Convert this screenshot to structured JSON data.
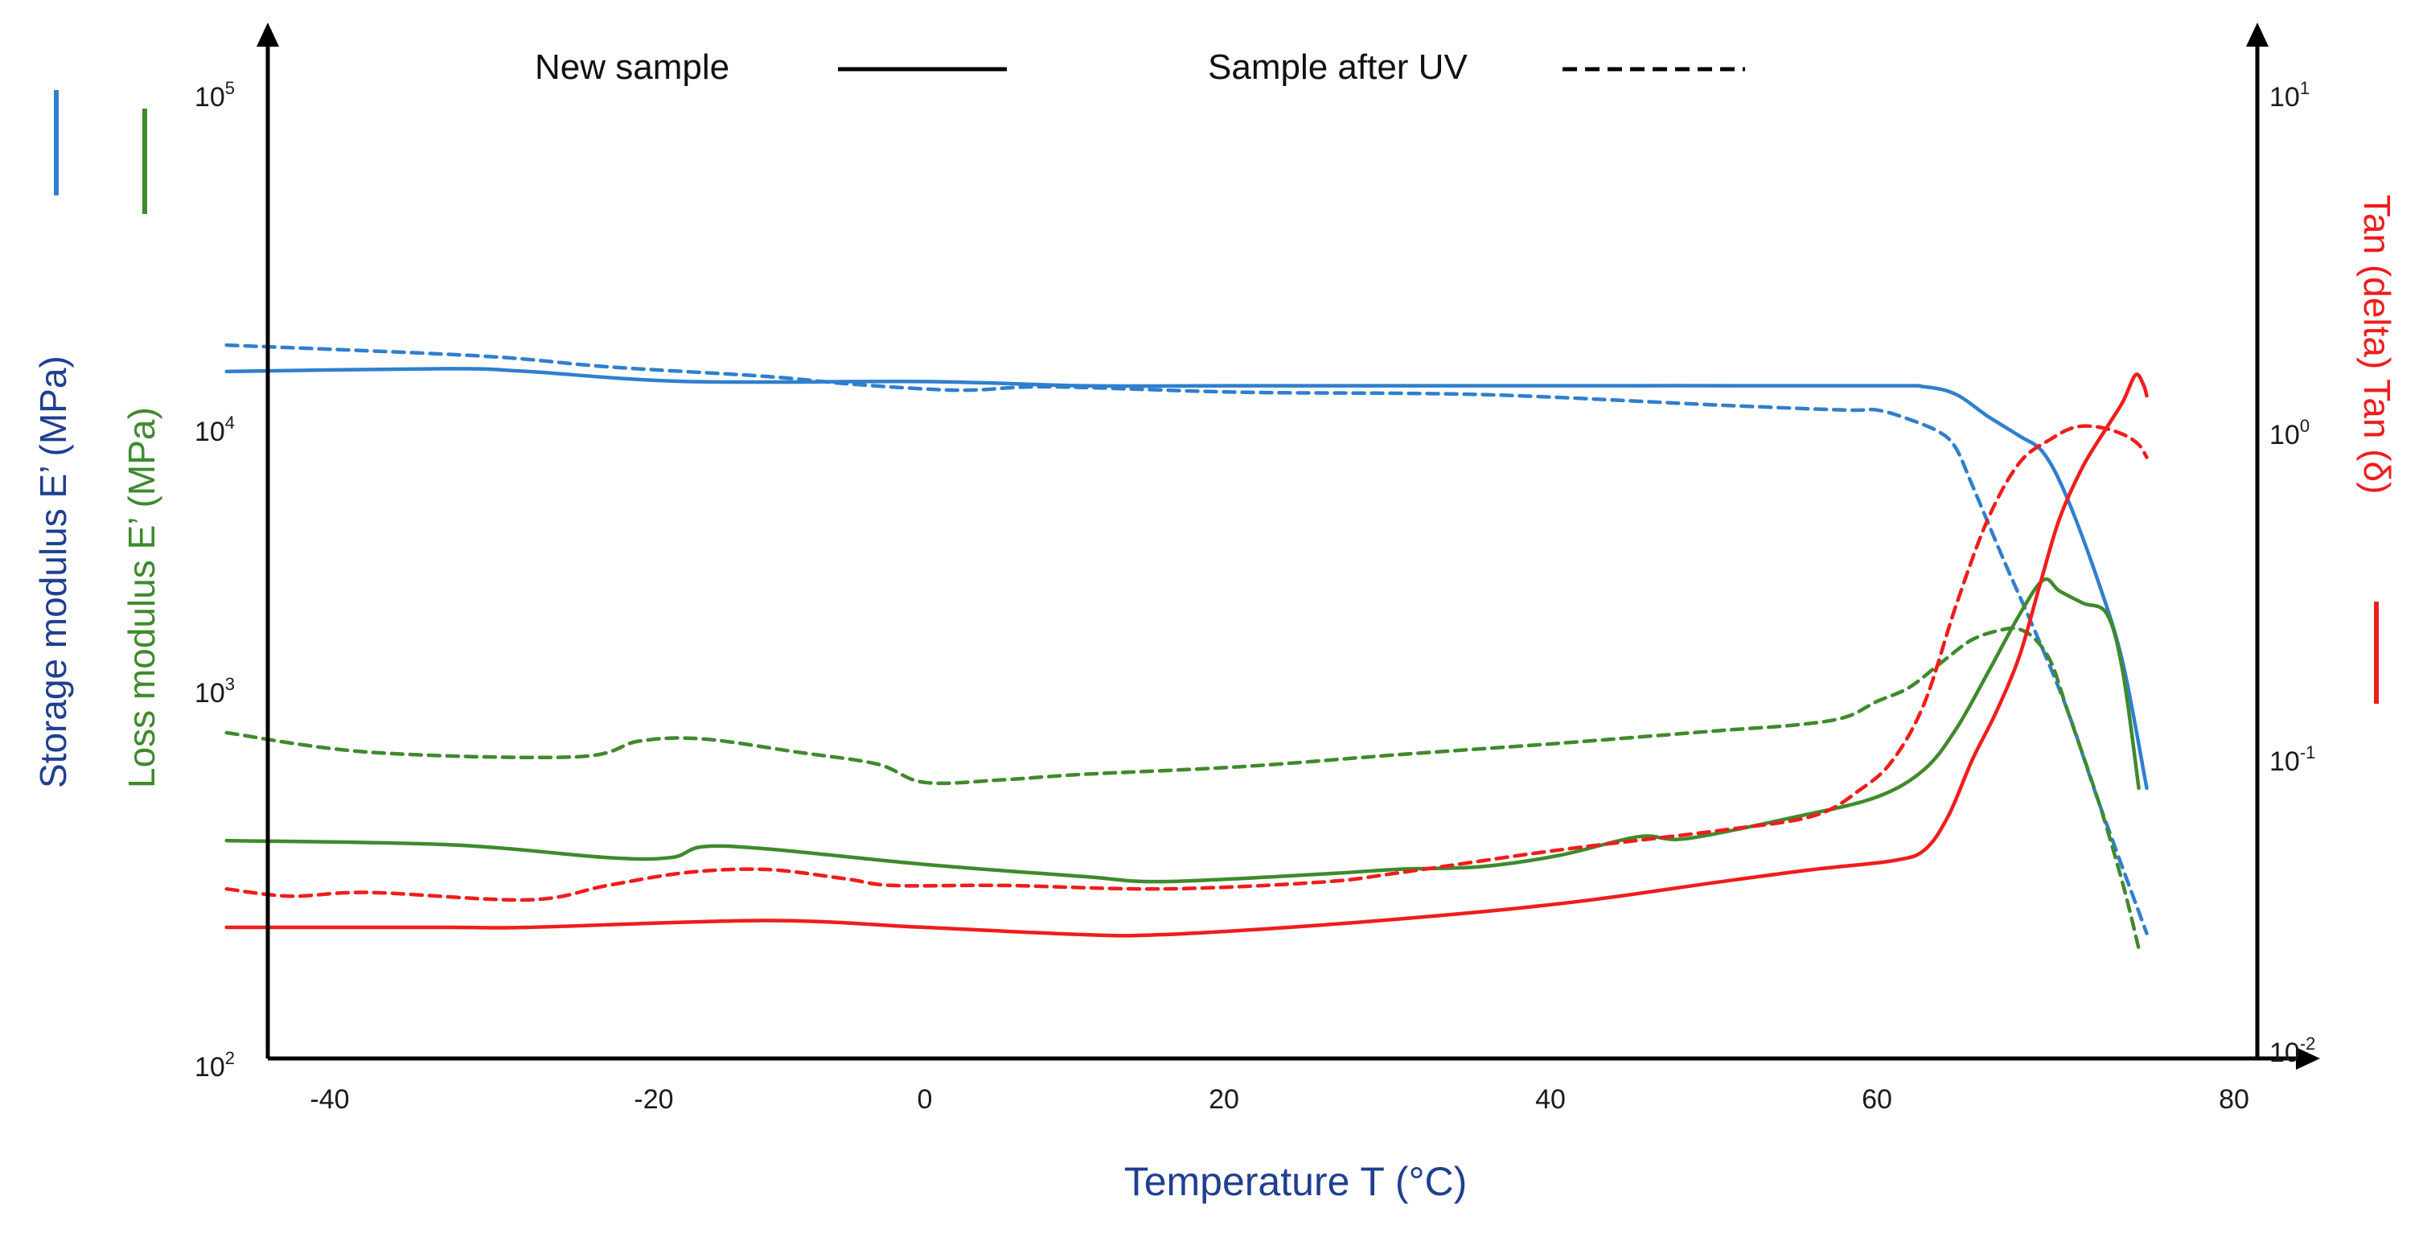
{
  "chart_data": {
    "type": "line",
    "title": "",
    "xlabel": "Temperature T (°C)",
    "ylabel_left_storage": "Storage modulus E’ (MPa)",
    "ylabel_left_loss": "Loss modulus E’ (MPa)",
    "ylabel_right": "Tan (delta) Tan (δ)",
    "xlim": [
      -44,
      80
    ],
    "ylim_left": [
      100,
      100000
    ],
    "ylim_right": [
      0.01,
      10
    ],
    "x_ticks": [
      "-40",
      "-20",
      "0",
      "20",
      "40",
      "60",
      "80"
    ],
    "x_tick_values": [
      -40,
      -20,
      0,
      20,
      40,
      60,
      80
    ],
    "y_left_ticks": [
      {
        "value": 100,
        "base": "10",
        "exp": "2"
      },
      {
        "value": 1000,
        "base": "10",
        "exp": "3"
      },
      {
        "value": 10000,
        "base": "10",
        "exp": "4"
      },
      {
        "value": 100000,
        "base": "10",
        "exp": "5"
      }
    ],
    "y_right_ticks": [
      {
        "value": 0.01,
        "base": "10",
        "exp": "-2"
      },
      {
        "value": 0.1,
        "base": "10",
        "exp": "-1"
      },
      {
        "value": 1,
        "base": "10",
        "exp": "0"
      },
      {
        "value": 10,
        "base": "10",
        "exp": "1"
      }
    ],
    "legend": {
      "new_sample": "New sample",
      "after_uv": "Sample after UV"
    },
    "colors": {
      "storage": "#2f7fce",
      "loss": "#3e8a2c",
      "tan": "#f01c1c",
      "storage_title": "#1f3f8f",
      "loss_title": "#3e8a2c",
      "tan_title": "#f01c1c",
      "xlabel": "#1f3f8f"
    },
    "series": [
      {
        "name": "Storage modulus E’ – New sample",
        "axis": "left",
        "color_key": "storage",
        "dash": false,
        "points": [
          [
            -44,
            15000
          ],
          [
            -30,
            15300
          ],
          [
            -25,
            15000
          ],
          [
            -15,
            14000
          ],
          [
            0,
            14000
          ],
          [
            10,
            13600
          ],
          [
            20,
            13600
          ],
          [
            40,
            13600
          ],
          [
            60,
            13600
          ],
          [
            63,
            13500
          ],
          [
            65,
            12800
          ],
          [
            67,
            11000
          ],
          [
            69,
            9500
          ],
          [
            70.5,
            8200
          ],
          [
            72,
            5500
          ],
          [
            74,
            2600
          ],
          [
            75.5,
            1300
          ],
          [
            77,
            550
          ]
        ]
      },
      {
        "name": "Storage modulus E’ – Sample after UV",
        "axis": "left",
        "color_key": "storage",
        "dash": true,
        "points": [
          [
            -44,
            18000
          ],
          [
            -28,
            16700
          ],
          [
            -20,
            15500
          ],
          [
            -10,
            14500
          ],
          [
            -5,
            13800
          ],
          [
            0,
            13300
          ],
          [
            3,
            13200
          ],
          [
            8,
            13500
          ],
          [
            20,
            13000
          ],
          [
            35,
            12800
          ],
          [
            50,
            11900
          ],
          [
            58,
            11500
          ],
          [
            60,
            11500
          ],
          [
            62,
            10800
          ],
          [
            64,
            9800
          ],
          [
            65,
            8500
          ],
          [
            66,
            6200
          ],
          [
            68,
            3200
          ],
          [
            70,
            1700
          ],
          [
            72,
            900
          ],
          [
            74,
            500
          ],
          [
            77,
            220
          ]
        ]
      },
      {
        "name": "Loss modulus E’ – New sample",
        "axis": "left",
        "color_key": "loss",
        "dash": false,
        "points": [
          [
            -44,
            395
          ],
          [
            -30,
            385
          ],
          [
            -20,
            355
          ],
          [
            -16,
            355
          ],
          [
            -14,
            380
          ],
          [
            -10,
            375
          ],
          [
            0,
            340
          ],
          [
            10,
            315
          ],
          [
            15,
            305
          ],
          [
            25,
            320
          ],
          [
            30,
            330
          ],
          [
            35,
            335
          ],
          [
            40,
            360
          ],
          [
            45,
            405
          ],
          [
            48,
            400
          ],
          [
            55,
            460
          ],
          [
            60,
            520
          ],
          [
            63,
            620
          ],
          [
            65,
            800
          ],
          [
            67,
            1200
          ],
          [
            69,
            2000
          ],
          [
            70.5,
            2700
          ],
          [
            71.5,
            2450
          ],
          [
            73,
            2200
          ],
          [
            74.5,
            2000
          ],
          [
            75.5,
            1200
          ],
          [
            76.5,
            550
          ]
        ]
      },
      {
        "name": "Loss modulus E’ – Sample after UV",
        "axis": "left",
        "color_key": "loss",
        "dash": true,
        "points": [
          [
            -44,
            780
          ],
          [
            -35,
            690
          ],
          [
            -22,
            670
          ],
          [
            -18,
            740
          ],
          [
            -14,
            750
          ],
          [
            -8,
            690
          ],
          [
            -3,
            640
          ],
          [
            0,
            570
          ],
          [
            5,
            580
          ],
          [
            10,
            600
          ],
          [
            20,
            630
          ],
          [
            30,
            680
          ],
          [
            40,
            730
          ],
          [
            50,
            790
          ],
          [
            55,
            820
          ],
          [
            58,
            860
          ],
          [
            60,
            950
          ],
          [
            62,
            1050
          ],
          [
            64,
            1300
          ],
          [
            66,
            1600
          ],
          [
            68,
            1750
          ],
          [
            69,
            1750
          ],
          [
            70,
            1600
          ],
          [
            71,
            1300
          ],
          [
            72,
            900
          ],
          [
            74,
            500
          ],
          [
            75.5,
            300
          ],
          [
            76.5,
            200
          ]
        ]
      },
      {
        "name": "Tan (δ) – New sample",
        "axis": "right",
        "color_key": "tan",
        "dash": false,
        "points": [
          [
            -44,
            0.0275
          ],
          [
            -30,
            0.0275
          ],
          [
            -25,
            0.0275
          ],
          [
            -10,
            0.029
          ],
          [
            0,
            0.0275
          ],
          [
            10,
            0.026
          ],
          [
            15,
            0.026
          ],
          [
            25,
            0.028
          ],
          [
            35,
            0.031
          ],
          [
            42,
            0.034
          ],
          [
            50,
            0.039
          ],
          [
            56,
            0.043
          ],
          [
            61,
            0.046
          ],
          [
            63,
            0.05
          ],
          [
            64.5,
            0.065
          ],
          [
            66,
            0.1
          ],
          [
            67.5,
            0.14
          ],
          [
            69,
            0.21
          ],
          [
            70.3,
            0.35
          ],
          [
            71.5,
            0.55
          ],
          [
            73,
            0.8
          ],
          [
            74.5,
            1.05
          ],
          [
            75.5,
            1.25
          ],
          [
            76.3,
            1.5
          ],
          [
            76.8,
            1.4
          ],
          [
            77,
            1.3
          ]
        ]
      },
      {
        "name": "Tan (δ) – Sample after UV",
        "axis": "right",
        "color_key": "tan",
        "dash": true,
        "points": [
          [
            -44,
            0.037
          ],
          [
            -40,
            0.035
          ],
          [
            -35,
            0.036
          ],
          [
            -25,
            0.034
          ],
          [
            -20,
            0.038
          ],
          [
            -15,
            0.042
          ],
          [
            -10,
            0.043
          ],
          [
            -5,
            0.04
          ],
          [
            -2,
            0.038
          ],
          [
            5,
            0.038
          ],
          [
            15,
            0.037
          ],
          [
            25,
            0.039
          ],
          [
            30,
            0.042
          ],
          [
            40,
            0.05
          ],
          [
            50,
            0.058
          ],
          [
            56,
            0.065
          ],
          [
            59,
            0.08
          ],
          [
            61,
            0.1
          ],
          [
            63,
            0.15
          ],
          [
            65,
            0.3
          ],
          [
            67,
            0.55
          ],
          [
            69,
            0.82
          ],
          [
            71,
            0.97
          ],
          [
            72.5,
            1.05
          ],
          [
            74,
            1.05
          ],
          [
            75.5,
            1.0
          ],
          [
            76.5,
            0.93
          ],
          [
            77,
            0.85
          ]
        ]
      }
    ]
  }
}
